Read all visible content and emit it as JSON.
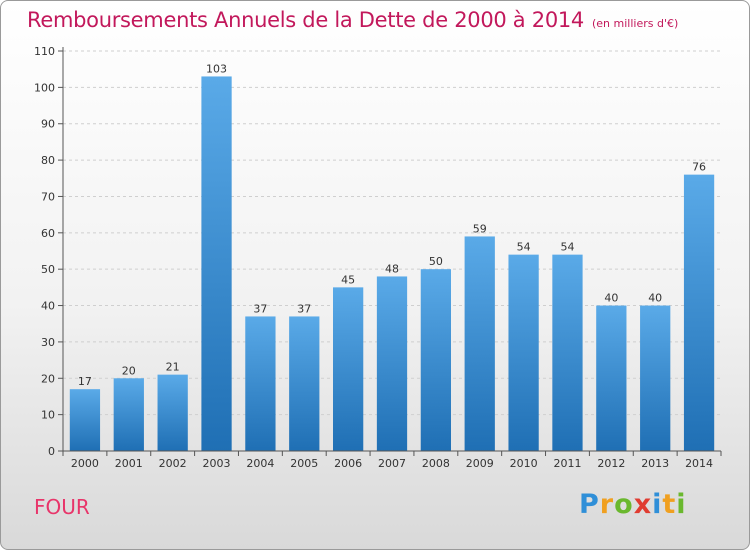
{
  "header": {
    "title": "Remboursements Annuels de la Dette de 2000 à 2014",
    "unit": "(en milliers d'€)"
  },
  "footer": {
    "commune": "FOUR",
    "logo_letters": [
      "P",
      "r",
      "o",
      "x",
      "i",
      "t",
      "i"
    ],
    "logo_colors": [
      "#2f8fd8",
      "#f0a020",
      "#6ab82e",
      "#e03c31",
      "#2f8fd8",
      "#f0a020",
      "#6ab82e"
    ]
  },
  "chart_data": {
    "type": "bar",
    "categories": [
      "2000",
      "2001",
      "2002",
      "2003",
      "2004",
      "2005",
      "2006",
      "2007",
      "2008",
      "2009",
      "2010",
      "2011",
      "2012",
      "2013",
      "2014"
    ],
    "values": [
      17,
      20,
      21,
      103,
      37,
      37,
      45,
      48,
      50,
      59,
      54,
      54,
      40,
      40,
      76
    ],
    "yticks": [
      0,
      10,
      20,
      30,
      40,
      50,
      60,
      70,
      80,
      90,
      100,
      110
    ],
    "ylim": [
      0,
      110
    ],
    "grid": true,
    "bar_color_top": "#5aaae8",
    "bar_color_bottom": "#1f6fb4"
  }
}
